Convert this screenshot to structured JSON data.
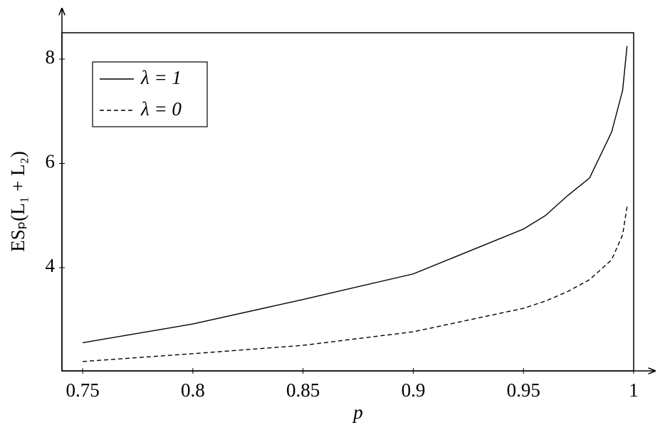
{
  "chart_data": {
    "type": "line",
    "xlabel": "p",
    "ylabel": "ESₚ(L₁ + L₂)",
    "x": [
      0.75,
      0.8,
      0.85,
      0.9,
      0.95,
      0.96,
      0.97,
      0.98,
      0.99,
      0.995,
      0.997
    ],
    "series": [
      {
        "name": "λ = 1",
        "color": "#000000",
        "dash": false,
        "values": [
          2.56,
          2.92,
          3.39,
          3.88,
          4.74,
          5.0,
          5.38,
          5.72,
          6.6,
          7.4,
          8.25
        ]
      },
      {
        "name": "λ = 0",
        "color": "#000000",
        "dash": true,
        "values": [
          2.2,
          2.35,
          2.51,
          2.77,
          3.22,
          3.36,
          3.54,
          3.77,
          4.15,
          4.63,
          5.17
        ]
      }
    ],
    "xlim": [
      0.7406,
      1.0
    ],
    "ylim": [
      2.02,
      8.505
    ],
    "xticks": [
      0.75,
      0.8,
      0.85,
      0.9,
      0.95,
      1
    ],
    "yticks": [
      4,
      6,
      8
    ],
    "legend": "upper left"
  }
}
